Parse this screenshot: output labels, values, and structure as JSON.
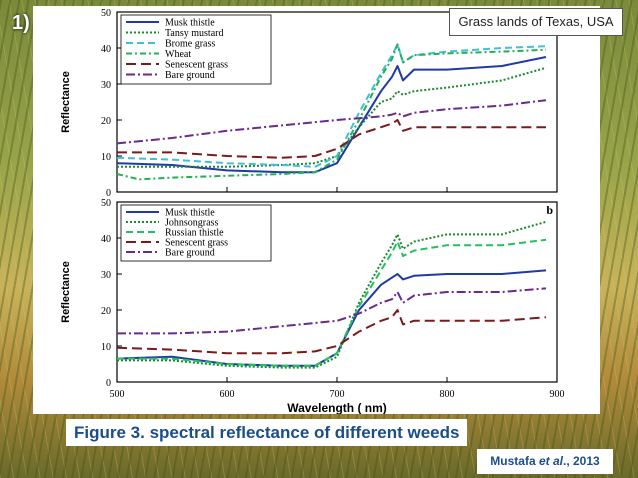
{
  "slide": {
    "number": "1)"
  },
  "badge": {
    "text": "Grass lands of Texas, USA"
  },
  "caption": {
    "text": "Figure 3. spectral reflectance of different weeds"
  },
  "citation": {
    "author": "Mustafa ",
    "etal": "et al",
    "rest": "., 2013"
  },
  "chart_data": [
    {
      "type": "line",
      "panel_label": "",
      "ylabel": "Reflectance",
      "xlim": [
        500,
        900
      ],
      "ylim": [
        0,
        50
      ],
      "yticks": [
        0,
        10,
        20,
        30,
        40,
        50
      ],
      "legend_placement": "top-left",
      "series": [
        {
          "name": "Musk thistle",
          "color": "#1f3aa6",
          "dash": "solid",
          "x": [
            500,
            550,
            600,
            650,
            680,
            700,
            720,
            740,
            750,
            755,
            760,
            770,
            800,
            850,
            890
          ],
          "y": [
            8,
            7.5,
            6,
            5.5,
            5.5,
            8,
            18,
            28,
            32,
            35,
            31,
            34,
            34,
            35,
            37.5
          ]
        },
        {
          "name": "Tansy mustard",
          "color": "#1a8a2a",
          "dash": "dotted",
          "x": [
            500,
            550,
            600,
            650,
            680,
            700,
            720,
            740,
            750,
            755,
            760,
            770,
            800,
            850,
            890
          ],
          "y": [
            7,
            7,
            7,
            7.5,
            8,
            10,
            18,
            25,
            26,
            28,
            27,
            28,
            29,
            31,
            34.5
          ]
        },
        {
          "name": "Brome grass",
          "color": "#3fc0d8",
          "dash": "dashed",
          "x": [
            500,
            550,
            600,
            650,
            680,
            700,
            720,
            740,
            750,
            755,
            760,
            770,
            800,
            850,
            890
          ],
          "y": [
            9.5,
            9,
            8,
            7.5,
            7,
            10,
            22,
            33,
            38,
            41,
            36,
            38,
            39,
            40,
            40.5
          ]
        },
        {
          "name": "Wheat",
          "color": "#22b050",
          "dash": "dashdot",
          "x": [
            500,
            520,
            550,
            600,
            650,
            680,
            700,
            720,
            740,
            750,
            755,
            760,
            770,
            800,
            850,
            890
          ],
          "y": [
            5,
            3.5,
            4,
            4.5,
            5,
            5.5,
            9,
            20,
            32,
            37,
            41,
            36,
            38,
            38.5,
            39,
            39.5
          ]
        },
        {
          "name": "Senescent grass",
          "color": "#7a1a1a",
          "dash": "longdash",
          "x": [
            500,
            550,
            600,
            650,
            680,
            700,
            720,
            740,
            750,
            755,
            760,
            770,
            800,
            850,
            890
          ],
          "y": [
            11,
            11,
            10,
            9.5,
            10,
            12,
            16,
            18,
            19,
            20,
            17,
            18,
            18,
            18,
            18
          ]
        },
        {
          "name": "Bare ground",
          "color": "#6a2a8a",
          "dash": "dashdotlong",
          "x": [
            500,
            550,
            600,
            650,
            700,
            720,
            740,
            750,
            755,
            760,
            770,
            800,
            850,
            890
          ],
          "y": [
            13.5,
            15,
            17,
            18.5,
            20,
            20.5,
            21,
            21.5,
            22,
            21,
            22,
            23,
            24,
            25.5
          ]
        }
      ]
    },
    {
      "type": "line",
      "panel_label": "b",
      "xlabel": "Wavelength  ( nm)",
      "ylabel": "Reflectance",
      "xlim": [
        500,
        900
      ],
      "ylim": [
        0,
        50
      ],
      "xticks": [
        500,
        600,
        700,
        800,
        900
      ],
      "yticks": [
        0,
        10,
        20,
        30,
        40,
        50
      ],
      "legend_placement": "top-left",
      "series": [
        {
          "name": "Musk thistle",
          "color": "#1f3aa6",
          "dash": "solid",
          "x": [
            500,
            550,
            600,
            650,
            680,
            700,
            720,
            740,
            750,
            755,
            760,
            770,
            800,
            850,
            890
          ],
          "y": [
            6.5,
            7,
            5,
            4.5,
            4.5,
            8,
            20,
            27,
            29,
            30,
            28.5,
            29.5,
            30,
            30,
            31
          ]
        },
        {
          "name": "Johnsongrass",
          "color": "#1a8a2a",
          "dash": "dotted",
          "x": [
            500,
            550,
            600,
            650,
            680,
            700,
            720,
            740,
            750,
            755,
            760,
            770,
            800,
            850,
            890
          ],
          "y": [
            6,
            6,
            4.5,
            4,
            4,
            7,
            22,
            33,
            38,
            41,
            37,
            39,
            41,
            41,
            44.5
          ]
        },
        {
          "name": "Russian thistle",
          "color": "#22c060",
          "dash": "dashed",
          "x": [
            500,
            550,
            600,
            650,
            680,
            700,
            720,
            740,
            750,
            755,
            760,
            770,
            800,
            850,
            890
          ],
          "y": [
            6.5,
            6.5,
            5,
            4.5,
            4.5,
            8,
            21,
            31,
            36,
            39,
            35,
            36.5,
            38,
            38,
            39.5
          ]
        },
        {
          "name": "Senescent grass",
          "color": "#7a1a1a",
          "dash": "longdash",
          "x": [
            500,
            550,
            600,
            650,
            680,
            700,
            720,
            740,
            750,
            755,
            760,
            770,
            800,
            850,
            890
          ],
          "y": [
            9.5,
            9,
            8,
            8,
            8.5,
            10,
            14,
            17,
            18,
            20,
            16,
            17,
            17,
            17,
            18
          ]
        },
        {
          "name": "Bare ground",
          "color": "#6a2a8a",
          "dash": "dashdotlong",
          "x": [
            500,
            550,
            600,
            650,
            700,
            720,
            740,
            750,
            755,
            760,
            770,
            800,
            850,
            890
          ],
          "y": [
            13.5,
            13.5,
            14,
            15.5,
            17,
            19,
            22,
            23,
            25,
            22,
            24,
            25,
            25,
            26
          ]
        }
      ]
    }
  ]
}
